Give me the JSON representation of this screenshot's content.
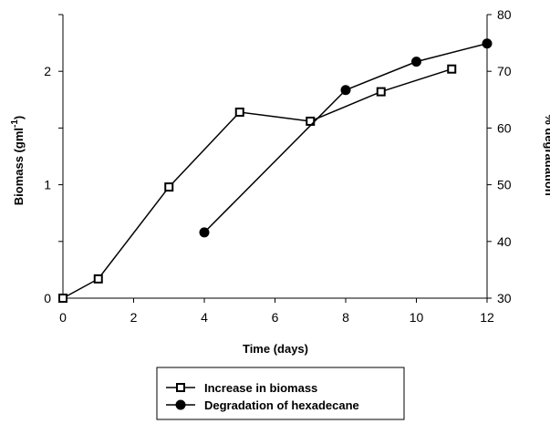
{
  "chart_data": {
    "type": "line",
    "title": "",
    "xlabel": "Time (days)",
    "ylabel_left": "Biomass (gml",
    "ylabel_left_sup": "-1",
    "ylabel_left_close": ")",
    "ylabel_right": "% degradation",
    "xlim": [
      0,
      12
    ],
    "ylim_left": [
      0,
      2.5
    ],
    "ylim_right": [
      30,
      80
    ],
    "x_ticks": [
      0,
      2,
      4,
      6,
      8,
      10,
      12
    ],
    "y_left_ticks": [
      0,
      1,
      2
    ],
    "y_right_ticks": [
      30,
      40,
      50,
      60,
      70,
      80
    ],
    "grid": false,
    "legend_position": "bottom",
    "series": [
      {
        "name": "Increase in biomass",
        "axis": "left",
        "marker": "open-square",
        "x": [
          0,
          1,
          3,
          5,
          7,
          9,
          11
        ],
        "y": [
          0,
          0.17,
          0.98,
          1.64,
          1.56,
          1.82,
          2.02
        ]
      },
      {
        "name": "Degradation of hexadecane",
        "axis": "right",
        "marker": "filled-circle",
        "x": [
          4,
          8,
          10,
          12
        ],
        "y": [
          41.6,
          66.7,
          71.7,
          74.9
        ]
      }
    ]
  }
}
